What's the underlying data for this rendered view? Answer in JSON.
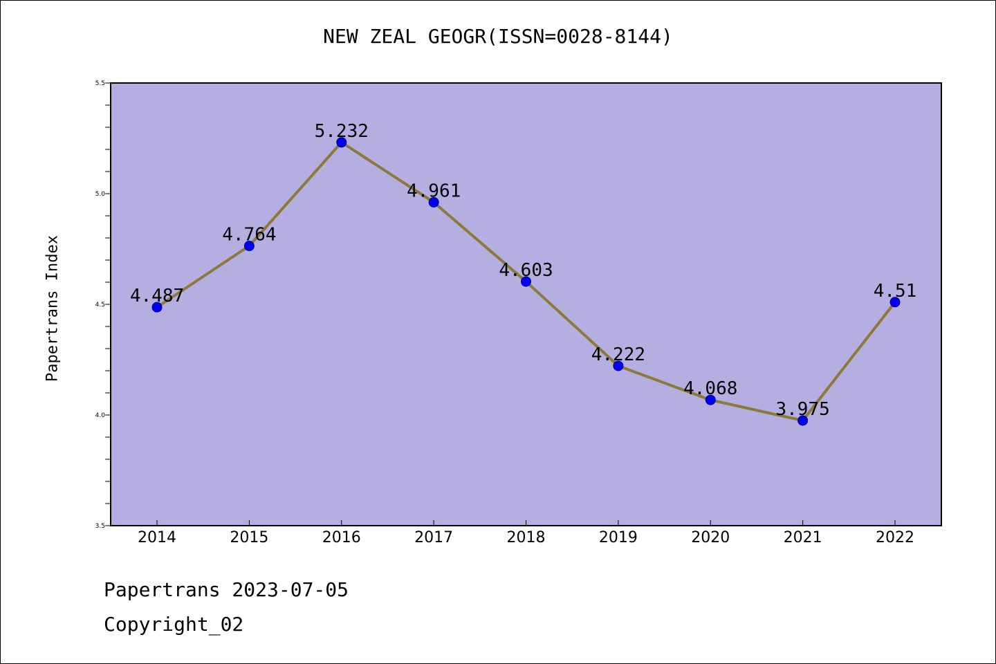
{
  "chart_data": {
    "type": "line",
    "title": "NEW ZEAL GEOGR(ISSN=0028-8144)",
    "xlabel": "",
    "ylabel": "Papertrans Index",
    "categories": [
      "2014",
      "2015",
      "2016",
      "2017",
      "2018",
      "2019",
      "2020",
      "2021",
      "2022"
    ],
    "series": [
      {
        "values": [
          4.487,
          4.764,
          5.232,
          4.961,
          4.603,
          4.222,
          4.068,
          3.975,
          4.51
        ],
        "labels": [
          "4.487",
          "4.764",
          "5.232",
          "4.961",
          "4.603",
          "4.222",
          "4.068",
          "3.975",
          "4.51"
        ]
      }
    ],
    "ylim": [
      3.5,
      5.5
    ],
    "yticks": [
      "3.5",
      "4.0",
      "4.5",
      "5.0",
      "5.5"
    ],
    "grid": false,
    "colors": {
      "plot_background": "#b5aee1",
      "line": "#8c7a3a",
      "marker": "#0000ee",
      "marker_edge": "#00008b"
    }
  },
  "footer": {
    "date_line": "Papertrans 2023-07-05",
    "copyright": "Copyright_02"
  }
}
